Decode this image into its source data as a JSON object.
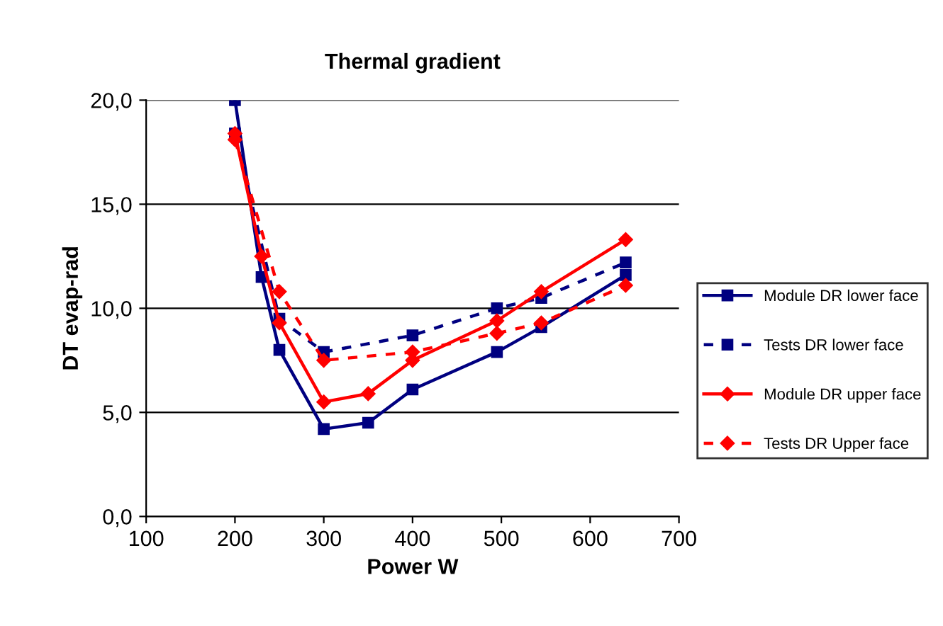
{
  "chart_data": {
    "type": "line",
    "title": "Thermal gradient",
    "xlabel": "Power W",
    "ylabel": "DT evap-rad",
    "xlim": [
      100,
      700
    ],
    "xticks": [
      100,
      200,
      300,
      400,
      500,
      600,
      700
    ],
    "ylim": [
      0,
      20
    ],
    "yticks": [
      {
        "value": 0,
        "label": "0,0"
      },
      {
        "value": 5,
        "label": "5,0"
      },
      {
        "value": 10,
        "label": "10,0"
      },
      {
        "value": 15,
        "label": "15,0"
      },
      {
        "value": 20,
        "label": "20,0"
      }
    ],
    "grid": "y",
    "legend": "right",
    "series": [
      {
        "name": "Module DR lower face",
        "color": "#000080",
        "marker": "square",
        "line_style": "solid",
        "x": [
          200,
          230,
          250,
          300,
          350,
          400,
          495,
          545,
          640
        ],
        "values": [
          20.0,
          11.5,
          8.0,
          4.2,
          4.5,
          6.1,
          7.9,
          9.1,
          11.6
        ]
      },
      {
        "name": "Tests DR lower face",
        "color": "#000080",
        "marker": "square",
        "line_style": "dashed",
        "x": [
          200,
          250,
          300,
          400,
          495,
          545,
          640
        ],
        "values": [
          18.4,
          9.5,
          7.9,
          8.7,
          10.0,
          10.5,
          12.2
        ]
      },
      {
        "name": "Module DR upper face",
        "color": "#ff0000",
        "marker": "diamond",
        "line_style": "solid",
        "x": [
          200,
          230,
          250,
          300,
          350,
          400,
          495,
          545,
          640
        ],
        "values": [
          18.4,
          12.5,
          9.3,
          5.5,
          5.9,
          7.5,
          9.4,
          10.8,
          13.3
        ]
      },
      {
        "name": "Tests DR Upper face",
        "color": "#ff0000",
        "marker": "diamond",
        "line_style": "dashed",
        "x": [
          200,
          250,
          300,
          400,
          495,
          545,
          640
        ],
        "values": [
          18.1,
          10.8,
          7.5,
          7.9,
          8.8,
          9.3,
          11.1
        ]
      }
    ]
  }
}
